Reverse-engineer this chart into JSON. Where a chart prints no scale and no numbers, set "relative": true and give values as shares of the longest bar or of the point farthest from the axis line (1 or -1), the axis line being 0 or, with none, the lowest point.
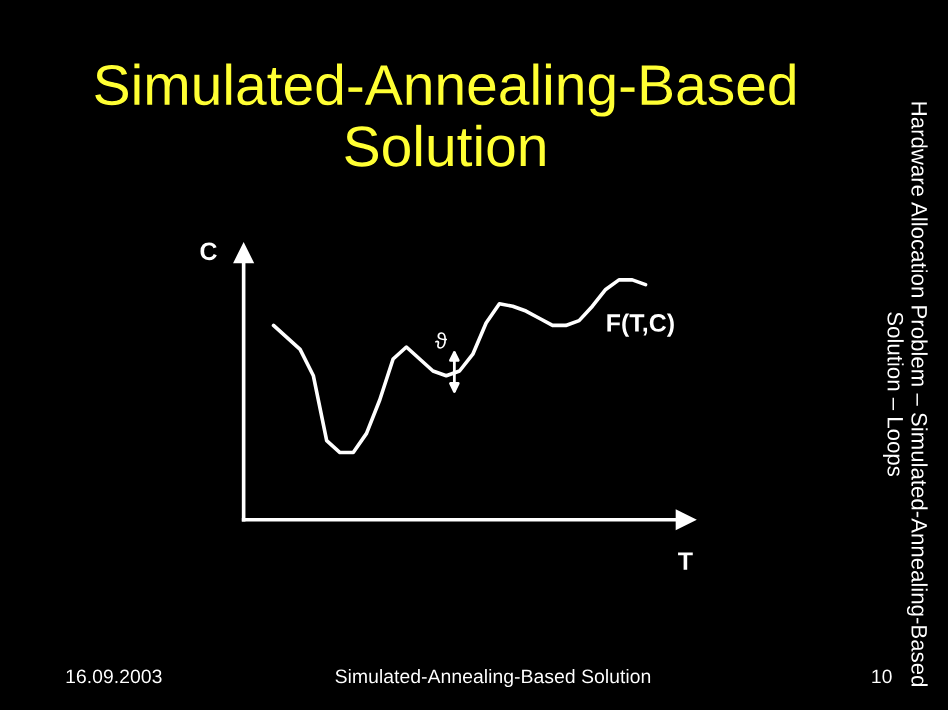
{
  "chart_data": {
    "type": "line",
    "title": "Simulated-Annealing-Based Solution",
    "xlabel": "T",
    "ylabel": "C",
    "relative": true,
    "categories": [
      null,
      null,
      null,
      null,
      null,
      null,
      null,
      null,
      null,
      null,
      null,
      null,
      null,
      null,
      null,
      null,
      null,
      null,
      null,
      null,
      null,
      null,
      null,
      null,
      null,
      null,
      null,
      null,
      null
    ],
    "series": [
      {
        "name": "F(T,C)",
        "color": "#ffffff",
        "values": [
          0.81,
          0.76,
          0.71,
          0.6,
          0.33,
          0.28,
          0.28,
          0.36,
          0.5,
          0.67,
          0.72,
          0.67,
          0.62,
          0.6,
          0.62,
          0.69,
          0.82,
          0.9,
          0.89,
          0.87,
          0.84,
          0.81,
          0.81,
          0.83,
          0.89,
          0.96,
          1.0,
          1.0,
          0.98
        ]
      }
    ],
    "annotations": [
      "ϑ",
      "Hardware Allocation Problem – Simulated-Annealing-Based Solution – Loops",
      "16.09.2003",
      "Simulated-Annealing-Based Solution",
      "10"
    ],
    "legend": false,
    "marker": "none",
    "line_style": "solid"
  }
}
